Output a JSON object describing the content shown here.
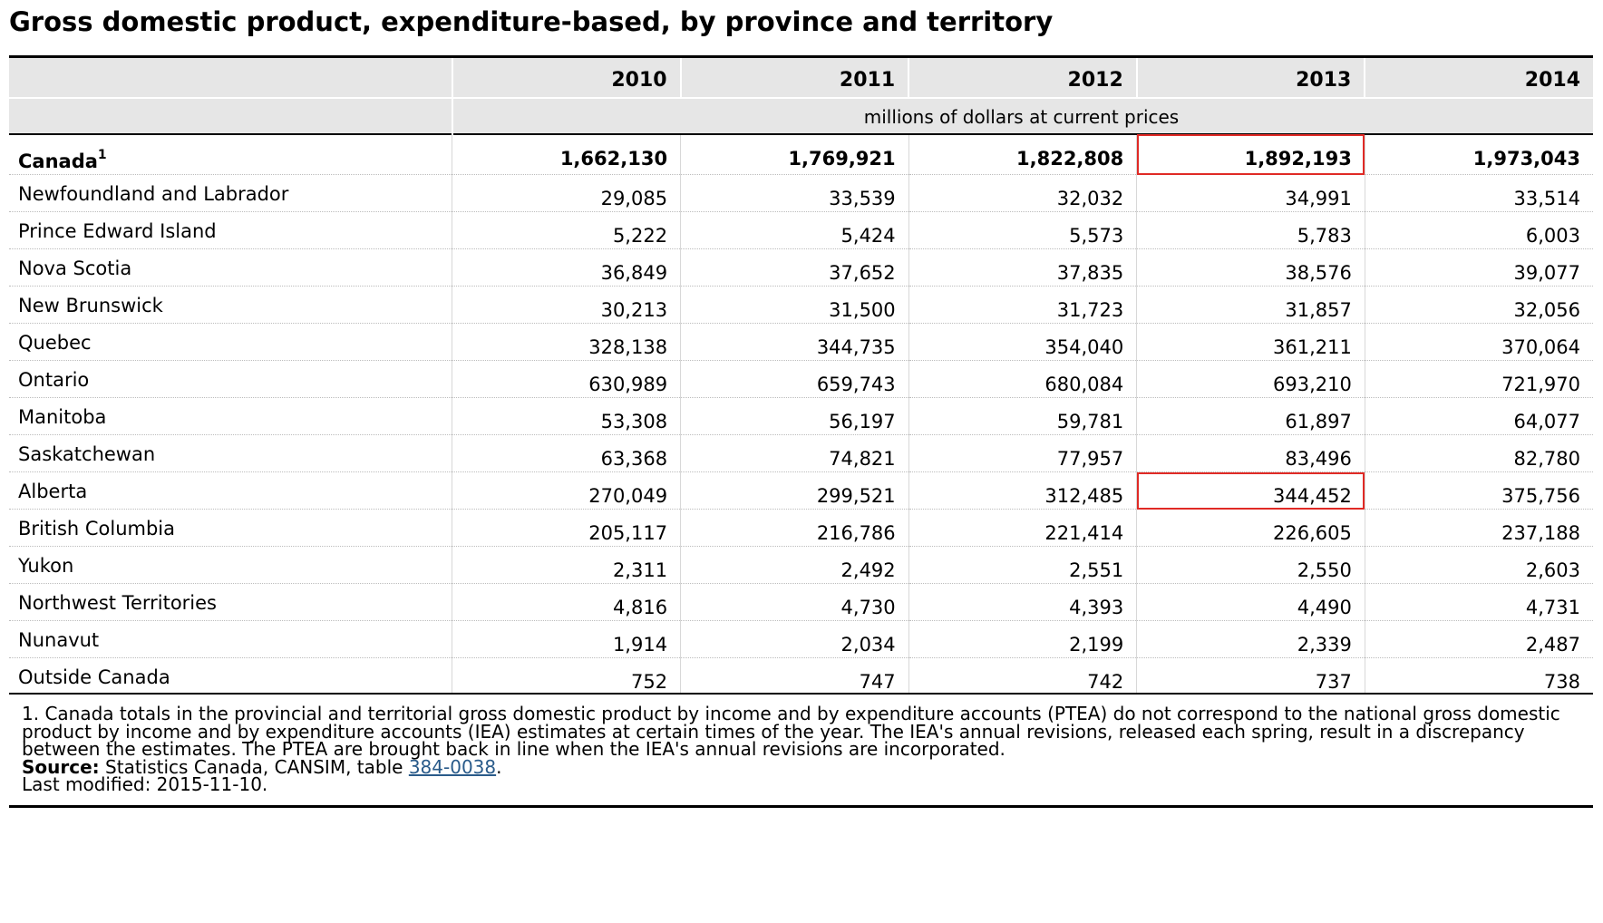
{
  "title": "Gross domestic product, expenditure-based, by province and territory",
  "table": {
    "years": [
      "2010",
      "2011",
      "2012",
      "2013",
      "2014"
    ],
    "units": "millions of dollars at current prices",
    "canada": {
      "label": "Canada",
      "footnote_mark": "1",
      "values": [
        "1,662,130",
        "1,769,921",
        "1,822,808",
        "1,892,193",
        "1,973,043"
      ]
    },
    "rows": [
      {
        "label": "Newfoundland and Labrador",
        "values": [
          "29,085",
          "33,539",
          "32,032",
          "34,991",
          "33,514"
        ]
      },
      {
        "label": "Prince Edward Island",
        "values": [
          "5,222",
          "5,424",
          "5,573",
          "5,783",
          "6,003"
        ]
      },
      {
        "label": "Nova Scotia",
        "values": [
          "36,849",
          "37,652",
          "37,835",
          "38,576",
          "39,077"
        ]
      },
      {
        "label": "New Brunswick",
        "values": [
          "30,213",
          "31,500",
          "31,723",
          "31,857",
          "32,056"
        ]
      },
      {
        "label": "Quebec",
        "values": [
          "328,138",
          "344,735",
          "354,040",
          "361,211",
          "370,064"
        ]
      },
      {
        "label": "Ontario",
        "values": [
          "630,989",
          "659,743",
          "680,084",
          "693,210",
          "721,970"
        ]
      },
      {
        "label": "Manitoba",
        "values": [
          "53,308",
          "56,197",
          "59,781",
          "61,897",
          "64,077"
        ]
      },
      {
        "label": "Saskatchewan",
        "values": [
          "63,368",
          "74,821",
          "77,957",
          "83,496",
          "82,780"
        ]
      },
      {
        "label": "Alberta",
        "values": [
          "270,049",
          "299,521",
          "312,485",
          "344,452",
          "375,756"
        ]
      },
      {
        "label": "British Columbia",
        "values": [
          "205,117",
          "216,786",
          "221,414",
          "226,605",
          "237,188"
        ]
      },
      {
        "label": "Yukon",
        "values": [
          "2,311",
          "2,492",
          "2,551",
          "2,550",
          "2,603"
        ]
      },
      {
        "label": "Northwest Territories",
        "values": [
          "4,816",
          "4,730",
          "4,393",
          "4,490",
          "4,731"
        ]
      },
      {
        "label": "Nunavut",
        "values": [
          "1,914",
          "2,034",
          "2,199",
          "2,339",
          "2,487"
        ]
      },
      {
        "label": "Outside Canada",
        "values": [
          "752",
          "747",
          "742",
          "737",
          "738"
        ]
      }
    ]
  },
  "footer": {
    "note": "1. Canada totals in the provincial and territorial gross domestic product by income and by expenditure accounts (PTEA) do not correspond to the national gross domestic product by income and by expenditure accounts (IEA) estimates at certain times of the year. The IEA's annual revisions, released each spring, result in a discrepancy between the estimates. The PTEA are brought back in line when the IEA's annual revisions are incorporated.",
    "source_label": "Source:",
    "source_text": " Statistics Canada, CANSIM, table ",
    "source_link": "384-0038",
    "source_end": ".",
    "last_modified": "Last modified: 2015-11-10."
  },
  "colors": {
    "highlight": "#e02a25",
    "header_bg": "#e6e6e6",
    "link": "#2a5b8a"
  }
}
